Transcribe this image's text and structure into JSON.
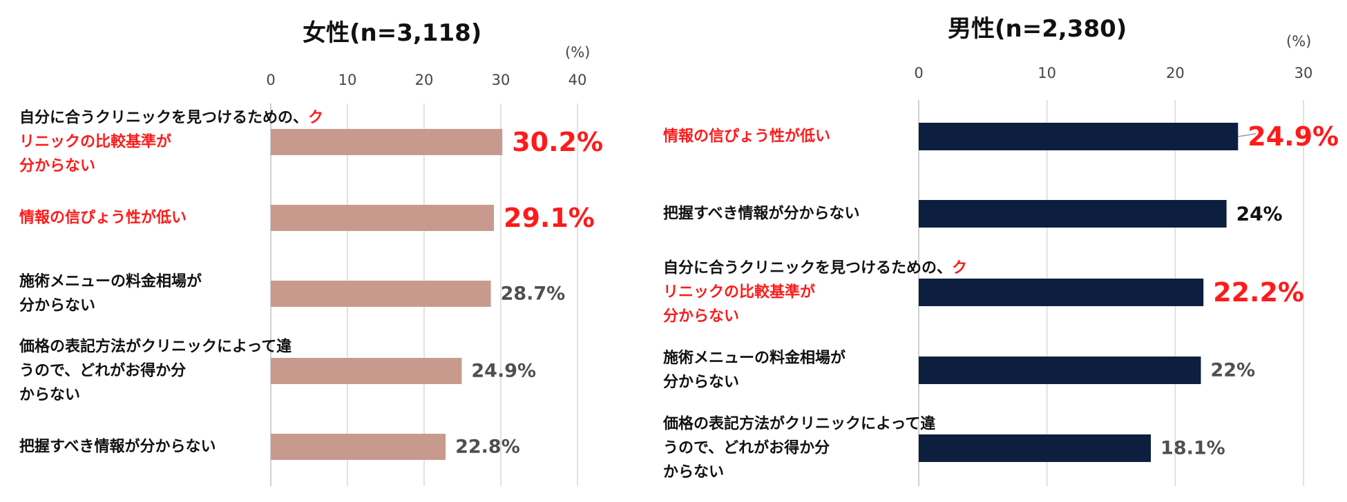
{
  "chart_data": [
    {
      "type": "bar",
      "orientation": "horizontal",
      "title": "女性(n=3,118)",
      "unit": "(%)",
      "xlim": [
        0,
        40
      ],
      "ticks": [
        "0",
        "10",
        "20",
        "30",
        "40"
      ],
      "grid": true,
      "bar_color": "#c89a8e",
      "categories": [
        {
          "pre": "自分に合うクリニックを見つけるための、",
          "hl": "クリニックの比較基準が分からない",
          "post": ""
        },
        {
          "pre": "",
          "hl": "情報の信ぴょう性が低い",
          "post": ""
        },
        {
          "pre": "施術メニューの料金相場が分からない",
          "hl": "",
          "post": ""
        },
        {
          "pre": "価格の表記方法がクリニックによって違うので、どれがお得か分からない",
          "hl": "",
          "post": ""
        },
        {
          "pre": "把握すべき情報が分からない",
          "hl": "",
          "post": ""
        }
      ],
      "values": [
        30.2,
        29.1,
        28.7,
        24.9,
        22.8
      ],
      "value_labels": [
        "30.2%",
        "29.1%",
        "28.7%",
        "24.9%",
        "22.8%"
      ],
      "label_styles": [
        "highlight",
        "highlight",
        "grey",
        "grey",
        "grey"
      ]
    },
    {
      "type": "bar",
      "orientation": "horizontal",
      "title": "男性(n=2,380)",
      "unit": "(%)",
      "xlim": [
        0,
        30
      ],
      "ticks": [
        "0",
        "10",
        "20",
        "30"
      ],
      "grid": true,
      "bar_color": "#0d1f3f",
      "categories": [
        {
          "pre": "",
          "hl": "情報の信ぴょう性が低い",
          "post": ""
        },
        {
          "pre": "把握すべき情報が分からない",
          "hl": "",
          "post": ""
        },
        {
          "pre": "自分に合うクリニックを見つけるための、",
          "hl": "クリニックの比較基準が分からない",
          "post": ""
        },
        {
          "pre": "施術メニューの料金相場が分からない",
          "hl": "",
          "post": ""
        },
        {
          "pre": "価格の表記方法がクリニックによって違うので、どれがお得か分からない",
          "hl": "",
          "post": ""
        }
      ],
      "values": [
        24.9,
        24,
        22.2,
        22,
        18.1
      ],
      "value_labels": [
        "24.9%",
        "24%",
        "22.2%",
        "22%",
        "18.1%"
      ],
      "label_styles": [
        "highlight",
        "dark",
        "highlight",
        "grey",
        "grey"
      ]
    }
  ]
}
